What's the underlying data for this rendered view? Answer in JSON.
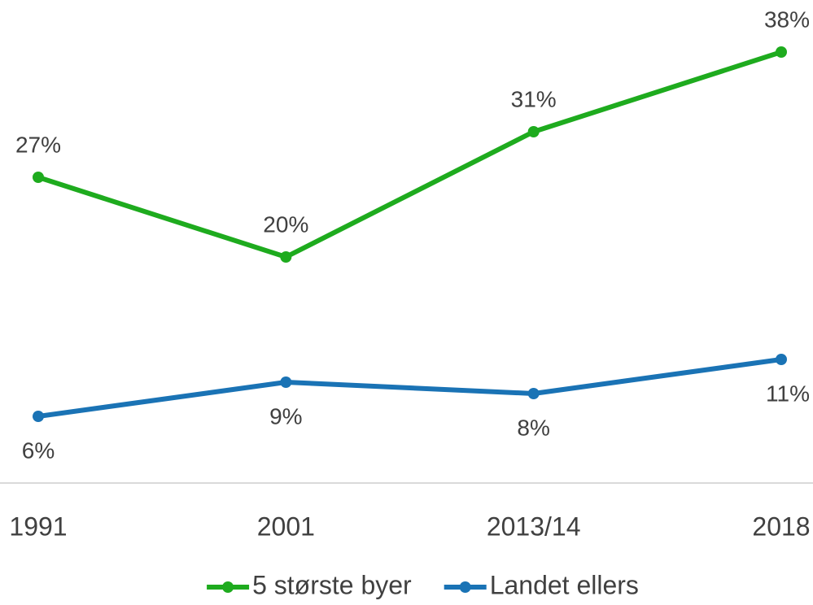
{
  "chart_data": {
    "type": "line",
    "categories": [
      "1991",
      "2001",
      "2013/14",
      "2018"
    ],
    "series": [
      {
        "name": "5 største byer",
        "color": "#1eab1e",
        "values": [
          27,
          20,
          31,
          38
        ],
        "value_labels": [
          "27%",
          "20%",
          "31%",
          "38%"
        ]
      },
      {
        "name": "Landet ellers",
        "color": "#1a73b5",
        "values": [
          6,
          9,
          8,
          11
        ],
        "value_labels": [
          "6%",
          "9%",
          "8%",
          "11%"
        ]
      }
    ],
    "ylim": [
      0,
      40
    ]
  }
}
